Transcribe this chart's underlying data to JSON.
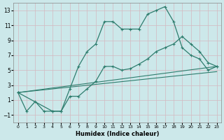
{
  "xlabel": "Humidex (Indice chaleur)",
  "bg_color": "#cce8ea",
  "grid_color": "#b8d4d6",
  "line_color": "#2e7d6e",
  "xlim": [
    -0.5,
    23.5
  ],
  "ylim": [
    -2,
    14
  ],
  "yticks": [
    -1,
    1,
    3,
    5,
    7,
    9,
    11,
    13
  ],
  "xticks": [
    0,
    1,
    2,
    3,
    4,
    5,
    6,
    7,
    8,
    9,
    10,
    11,
    12,
    13,
    14,
    15,
    16,
    17,
    18,
    19,
    20,
    21,
    22,
    23
  ],
  "series1_x": [
    0,
    1,
    2,
    3,
    4,
    5,
    6,
    7,
    8,
    9,
    10,
    11,
    12,
    13,
    14,
    15,
    16,
    17,
    18,
    19,
    20,
    21,
    22,
    23
  ],
  "series1_y": [
    2,
    -0.5,
    0.8,
    -0.5,
    -0.5,
    -0.5,
    2.5,
    5.5,
    7.5,
    8.5,
    11.5,
    11.5,
    10.5,
    10.5,
    10.5,
    12.5,
    13.0,
    13.5,
    11.5,
    8.0,
    7.0,
    6.5,
    5.0,
    5.5
  ],
  "series2_x": [
    0,
    4,
    5,
    6,
    7,
    8,
    9,
    10,
    11,
    12,
    13,
    14,
    15,
    16,
    17,
    18,
    19,
    20,
    21,
    22,
    23
  ],
  "series2_y": [
    2,
    -0.5,
    -0.5,
    1.5,
    1.5,
    2.5,
    3.5,
    5.5,
    5.5,
    5.0,
    5.2,
    5.8,
    6.5,
    7.5,
    8.0,
    8.5,
    9.5,
    8.5,
    7.5,
    6.0,
    5.5
  ],
  "series3_x": [
    0,
    23
  ],
  "series3_y": [
    2,
    5.5
  ],
  "series4_x": [
    0,
    23
  ],
  "series4_y": [
    2,
    4.8
  ]
}
